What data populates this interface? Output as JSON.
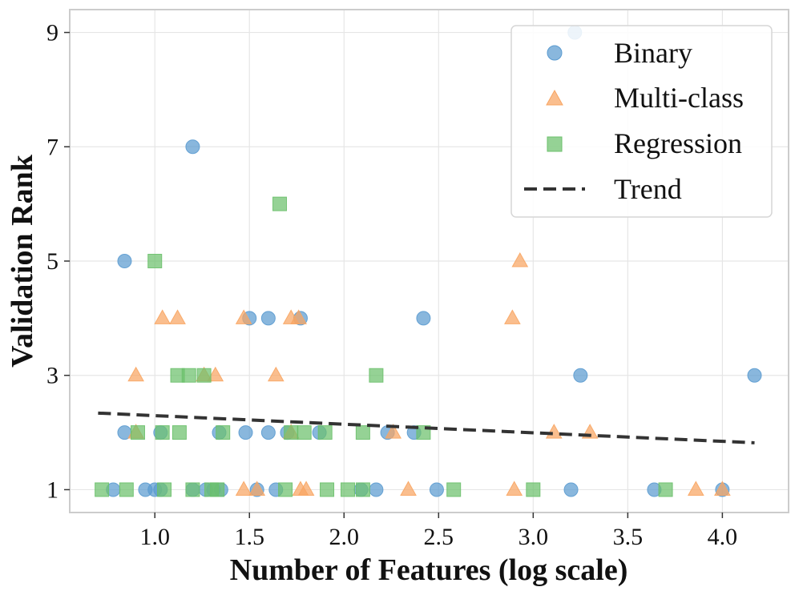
{
  "chart_data": {
    "type": "scatter",
    "title": "",
    "xlabel": "Number of Features (log scale)",
    "ylabel": "Validation Rank",
    "xlim": [
      0.55,
      4.35
    ],
    "ylim": [
      0.6,
      9.4
    ],
    "xticks": [
      1.0,
      1.5,
      2.0,
      2.5,
      3.0,
      3.5,
      4.0
    ],
    "xtick_labels": [
      "1.0",
      "1.5",
      "2.0",
      "2.5",
      "3.0",
      "3.5",
      "4.0"
    ],
    "yticks": [
      1,
      3,
      5,
      7,
      9
    ],
    "ytick_labels": [
      "1",
      "3",
      "5",
      "7",
      "9"
    ],
    "grid": true,
    "legend_position": "top-right",
    "series": [
      {
        "name": "Binary",
        "marker": "circle",
        "color": "#5b9bd0",
        "points": [
          [
            0.84,
            5
          ],
          [
            1.2,
            7
          ],
          [
            3.22,
            9
          ],
          [
            1.5,
            4
          ],
          [
            1.6,
            4
          ],
          [
            1.77,
            4
          ],
          [
            2.42,
            4
          ],
          [
            3.25,
            3
          ],
          [
            4.17,
            3
          ],
          [
            0.84,
            2
          ],
          [
            1.03,
            2
          ],
          [
            1.34,
            2
          ],
          [
            1.48,
            2
          ],
          [
            1.6,
            2
          ],
          [
            1.7,
            2
          ],
          [
            1.87,
            2
          ],
          [
            2.23,
            2
          ],
          [
            2.37,
            2
          ],
          [
            0.78,
            1
          ],
          [
            0.95,
            1
          ],
          [
            1.0,
            1
          ],
          [
            1.03,
            1
          ],
          [
            1.2,
            1
          ],
          [
            1.27,
            1
          ],
          [
            1.31,
            1
          ],
          [
            1.35,
            1
          ],
          [
            1.54,
            1
          ],
          [
            1.64,
            1
          ],
          [
            2.09,
            1
          ],
          [
            2.17,
            1
          ],
          [
            2.49,
            1
          ],
          [
            3.2,
            1
          ],
          [
            3.64,
            1
          ],
          [
            4.0,
            1
          ]
        ]
      },
      {
        "name": "Multi-class",
        "marker": "triangle",
        "color": "#f8a562",
        "points": [
          [
            2.93,
            5
          ],
          [
            1.04,
            4
          ],
          [
            1.12,
            4
          ],
          [
            1.47,
            4
          ],
          [
            1.72,
            4
          ],
          [
            1.76,
            4
          ],
          [
            2.89,
            4
          ],
          [
            0.9,
            3
          ],
          [
            1.26,
            3
          ],
          [
            1.32,
            3
          ],
          [
            1.64,
            3
          ],
          [
            0.9,
            2
          ],
          [
            1.72,
            2
          ],
          [
            2.26,
            2
          ],
          [
            3.11,
            2
          ],
          [
            3.3,
            2
          ],
          [
            1.47,
            1
          ],
          [
            1.54,
            1
          ],
          [
            1.77,
            1
          ],
          [
            1.8,
            1
          ],
          [
            2.34,
            1
          ],
          [
            2.9,
            1
          ],
          [
            3.86,
            1
          ],
          [
            4.0,
            1
          ]
        ]
      },
      {
        "name": "Regression",
        "marker": "square",
        "color": "#6cc06c",
        "points": [
          [
            1.66,
            6
          ],
          [
            1.0,
            5
          ],
          [
            1.12,
            3
          ],
          [
            1.18,
            3
          ],
          [
            1.26,
            3
          ],
          [
            2.17,
            3
          ],
          [
            0.91,
            2
          ],
          [
            1.04,
            2
          ],
          [
            1.13,
            2
          ],
          [
            1.36,
            2
          ],
          [
            1.72,
            2
          ],
          [
            1.79,
            2
          ],
          [
            1.9,
            2
          ],
          [
            2.1,
            2
          ],
          [
            2.42,
            2
          ],
          [
            0.72,
            1
          ],
          [
            0.85,
            1
          ],
          [
            1.05,
            1
          ],
          [
            1.2,
            1
          ],
          [
            1.3,
            1
          ],
          [
            1.33,
            1
          ],
          [
            1.69,
            1
          ],
          [
            1.91,
            1
          ],
          [
            2.02,
            1
          ],
          [
            2.1,
            1
          ],
          [
            2.58,
            1
          ],
          [
            3.0,
            1
          ],
          [
            3.7,
            1
          ]
        ]
      }
    ],
    "trend": {
      "name": "Trend",
      "style": "dashed",
      "color": "#333333",
      "x": [
        0.7,
        4.17
      ],
      "y": [
        2.34,
        1.82
      ]
    }
  }
}
